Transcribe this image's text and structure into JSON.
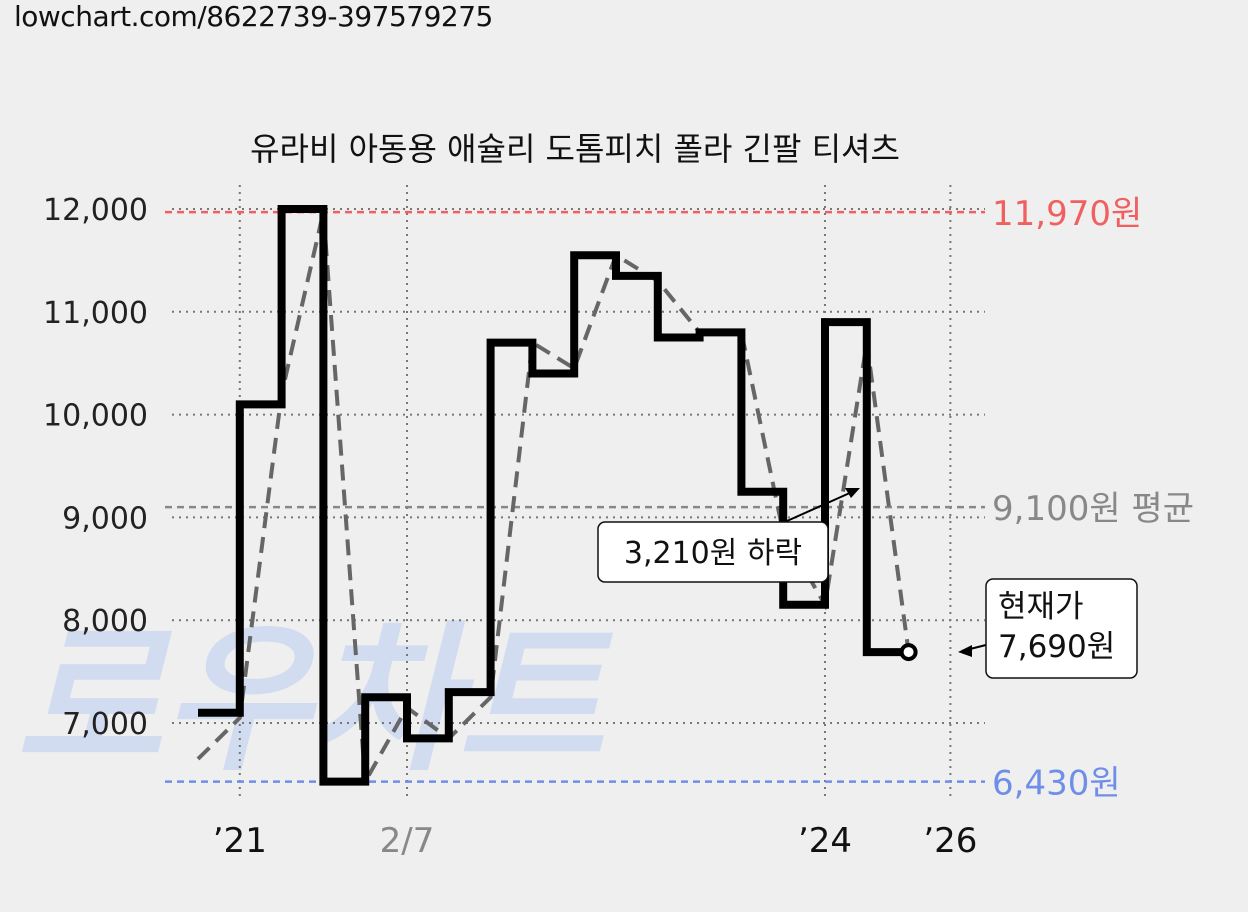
{
  "url_text": "lowchart.com/8622739-397579275",
  "watermark": "로우차트",
  "chart_data": {
    "type": "line",
    "title": "유라비 아동용 애슐리 도톰피치 폴라 긴팔 티셔츠",
    "y_ticks": [
      7000,
      8000,
      9000,
      10000,
      11000,
      12000
    ],
    "y_tick_labels": [
      "7,000",
      "8,000",
      "9,000",
      "10,000",
      "11,000",
      "12,000"
    ],
    "ylim": [
      6300,
      12200
    ],
    "x_ticks": [
      {
        "index": 1,
        "label": "’21",
        "muted": false
      },
      {
        "index": 5,
        "label": "2/7",
        "muted": true
      },
      {
        "index": 15,
        "label": "’24",
        "muted": false
      },
      {
        "index": 18,
        "label": "’26",
        "muted": false
      }
    ],
    "grid": true,
    "series": [
      {
        "style": "step",
        "color": "#000000",
        "values": [
          7100,
          10100,
          12000,
          6430,
          7250,
          6850,
          7300,
          10700,
          10400,
          11550,
          11350,
          10750,
          10800,
          9250,
          8150,
          10900,
          7690,
          7690
        ]
      },
      {
        "style": "dashed",
        "color": "#666666",
        "values": [
          6650,
          7050,
          10200,
          11970,
          6430,
          7150,
          6850,
          7250,
          10700,
          10450,
          11550,
          11300,
          10800,
          10800,
          8850,
          8150,
          10700,
          7690
        ]
      }
    ],
    "reference_lines": [
      {
        "value": 11970,
        "label": "11,970원",
        "color": "#f06060"
      },
      {
        "value": 9100,
        "label": "9,100원 평균",
        "color": "#888888"
      },
      {
        "value": 6430,
        "label": "6,430원",
        "color": "#6f8ee8"
      }
    ],
    "annotations": [
      {
        "text": "3,210원 하락"
      },
      {
        "text_lines": [
          "현재가",
          "7,690원"
        ]
      }
    ]
  }
}
